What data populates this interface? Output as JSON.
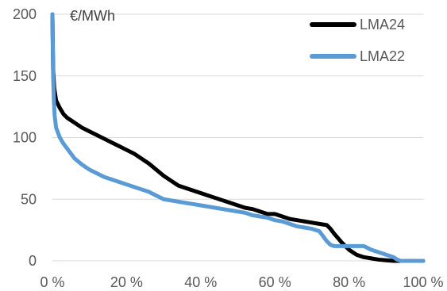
{
  "chart_data": {
    "type": "line",
    "ylabel": "€/MWh",
    "ylim": [
      0,
      200
    ],
    "xlim": [
      0,
      100
    ],
    "xticks": [
      0,
      20,
      40,
      60,
      80,
      100
    ],
    "xtick_labels": [
      "0 %",
      "20 %",
      "40 %",
      "60 %",
      "80 %",
      "100 %"
    ],
    "yticks": [
      0,
      50,
      100,
      150,
      200
    ],
    "ytick_labels": [
      "0",
      "50",
      "100",
      "150",
      "200"
    ],
    "grid": "horizontal",
    "legend": "top-right",
    "series": [
      {
        "name": "LMA24",
        "color": "#000000",
        "points": [
          [
            0,
            200
          ],
          [
            0.2,
            155
          ],
          [
            0.5,
            140
          ],
          [
            1,
            130
          ],
          [
            2,
            124
          ],
          [
            3,
            119
          ],
          [
            4,
            116
          ],
          [
            6,
            112
          ],
          [
            8,
            108
          ],
          [
            10,
            105
          ],
          [
            12,
            102
          ],
          [
            14,
            99
          ],
          [
            16,
            96
          ],
          [
            18,
            93
          ],
          [
            20,
            90
          ],
          [
            22,
            87
          ],
          [
            24,
            83
          ],
          [
            26,
            79
          ],
          [
            28,
            74
          ],
          [
            30,
            69
          ],
          [
            32,
            65
          ],
          [
            34,
            61
          ],
          [
            36,
            59
          ],
          [
            38,
            57
          ],
          [
            40,
            55
          ],
          [
            42,
            53
          ],
          [
            44,
            51
          ],
          [
            46,
            49
          ],
          [
            48,
            47
          ],
          [
            50,
            45
          ],
          [
            52,
            43
          ],
          [
            54,
            42
          ],
          [
            56,
            40
          ],
          [
            58,
            38
          ],
          [
            60,
            38
          ],
          [
            62,
            36
          ],
          [
            64,
            34
          ],
          [
            66,
            33
          ],
          [
            68,
            32
          ],
          [
            70,
            31
          ],
          [
            72,
            30
          ],
          [
            74,
            29
          ],
          [
            75,
            26
          ],
          [
            76,
            22
          ],
          [
            78,
            15
          ],
          [
            80,
            9
          ],
          [
            82,
            5
          ],
          [
            84,
            3
          ],
          [
            86,
            2
          ],
          [
            88,
            1
          ],
          [
            90,
            0.5
          ],
          [
            92,
            0
          ],
          [
            100,
            0
          ]
        ]
      },
      {
        "name": "LMA22",
        "color": "#5b9bd5",
        "points": [
          [
            0,
            200
          ],
          [
            0.2,
            150
          ],
          [
            0.4,
            130
          ],
          [
            0.6,
            118
          ],
          [
            1,
            108
          ],
          [
            2,
            100
          ],
          [
            3,
            95
          ],
          [
            4,
            91
          ],
          [
            5,
            87
          ],
          [
            6,
            83
          ],
          [
            8,
            78
          ],
          [
            10,
            74
          ],
          [
            12,
            71
          ],
          [
            14,
            68
          ],
          [
            16,
            66
          ],
          [
            18,
            64
          ],
          [
            20,
            62
          ],
          [
            22,
            60
          ],
          [
            24,
            58
          ],
          [
            26,
            56
          ],
          [
            28,
            53
          ],
          [
            30,
            50
          ],
          [
            32,
            49
          ],
          [
            34,
            48
          ],
          [
            36,
            47
          ],
          [
            38,
            46
          ],
          [
            40,
            45
          ],
          [
            42,
            44
          ],
          [
            44,
            43
          ],
          [
            46,
            42
          ],
          [
            48,
            41
          ],
          [
            50,
            40
          ],
          [
            52,
            39
          ],
          [
            54,
            37
          ],
          [
            56,
            36
          ],
          [
            58,
            35
          ],
          [
            60,
            33
          ],
          [
            62,
            32
          ],
          [
            64,
            30
          ],
          [
            66,
            28
          ],
          [
            68,
            27
          ],
          [
            70,
            26
          ],
          [
            72,
            24
          ],
          [
            73,
            20
          ],
          [
            74,
            16
          ],
          [
            75,
            13
          ],
          [
            76,
            12
          ],
          [
            78,
            12
          ],
          [
            80,
            12
          ],
          [
            82,
            12
          ],
          [
            84,
            12
          ],
          [
            86,
            9
          ],
          [
            88,
            7
          ],
          [
            90,
            5
          ],
          [
            92,
            3
          ],
          [
            93,
            1
          ],
          [
            94,
            0
          ],
          [
            100,
            0
          ]
        ]
      }
    ]
  }
}
